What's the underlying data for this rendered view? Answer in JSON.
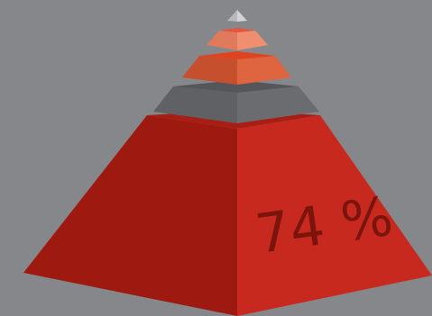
{
  "pyramid": {
    "tiers": [
      {
        "name": "tier-bottom",
        "value_label": "74 %"
      },
      {
        "name": "tier-gray"
      },
      {
        "name": "tier-orange"
      },
      {
        "name": "tier-salmon"
      },
      {
        "name": "tier-apex"
      }
    ]
  },
  "colors": {
    "background": "#86878b",
    "bottom_left": "#9e1a10",
    "bottom_right": "#c7291e",
    "bottom_top": "#a81e14",
    "gray_left": "#606164",
    "gray_right": "#6b6c70",
    "gray_top": "#55565a",
    "orange_left": "#c64f2e",
    "orange_right": "#df6440",
    "orange_top": "#e0441f",
    "salmon_left": "#e07a5d",
    "salmon_right": "#f08f70",
    "salmon_top": "#e7563a",
    "apex_left": "#b8b9bc",
    "apex_right": "#d3d4d7",
    "label_text": "#7a140c"
  }
}
